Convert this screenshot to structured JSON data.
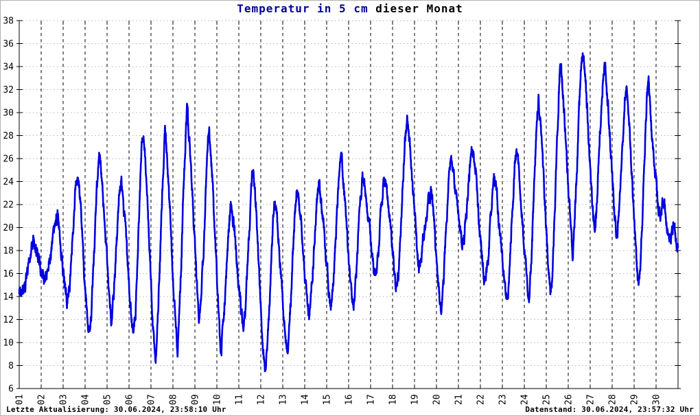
{
  "page": {
    "border_color": "#b0b0b0",
    "background": "#ffffff"
  },
  "title": {
    "primary": "Temperatur in 5 cm",
    "secondary": " dieser Monat",
    "primary_color": "#000099",
    "secondary_color": "#000000"
  },
  "footer": {
    "left": "Letzte Aktualisierung: 30.06.2024, 23:58:10 Uhr",
    "right": "Datenstand: 30.06.2024, 23:57:32 Uhr"
  },
  "chart_data": {
    "type": "line",
    "title": "Temperatur in 5 cm dieser Monat",
    "xlabel": "",
    "ylabel": "",
    "unit": "degrees Celsius",
    "ylim": [
      6,
      38
    ],
    "y_tick_step": 2,
    "x_tick_labels": [
      "01",
      "02",
      "03",
      "04",
      "05",
      "06",
      "07",
      "08",
      "09",
      "10",
      "11",
      "12",
      "13",
      "14",
      "15",
      "16",
      "17",
      "18",
      "19",
      "20",
      "21",
      "22",
      "23",
      "24",
      "25",
      "26",
      "27",
      "28",
      "29",
      "30"
    ],
    "grid": {
      "h_style": "dotted",
      "h_color": "#b3b3b3",
      "v_style": "dashed",
      "v_color": "#000000"
    },
    "series_color": "#0000dd",
    "legend": "none",
    "days": [
      {
        "day": "01",
        "min": 14.3,
        "max": 18.9
      },
      {
        "day": "02",
        "min": 15.4,
        "max": 21.0
      },
      {
        "day": "03",
        "min": 13.4,
        "max": 24.7
      },
      {
        "day": "04",
        "min": 10.1,
        "max": 26.3
      },
      {
        "day": "05",
        "min": 12.3,
        "max": 24.3
      },
      {
        "day": "06",
        "min": 10.5,
        "max": 28.4
      },
      {
        "day": "07",
        "min": 8.6,
        "max": 28.0
      },
      {
        "day": "08",
        "min": 9.7,
        "max": 30.1
      },
      {
        "day": "09",
        "min": 12.0,
        "max": 28.3
      },
      {
        "day": "10",
        "min": 9.4,
        "max": 22.2
      },
      {
        "day": "11",
        "min": 11.1,
        "max": 25.1
      },
      {
        "day": "12",
        "min": 7.1,
        "max": 22.7
      },
      {
        "day": "13",
        "min": 8.9,
        "max": 23.4
      },
      {
        "day": "14",
        "min": 12.7,
        "max": 23.7
      },
      {
        "day": "15",
        "min": 13.2,
        "max": 26.1
      },
      {
        "day": "16",
        "min": 13.0,
        "max": 24.5
      },
      {
        "day": "17",
        "min": 15.9,
        "max": 24.3
      },
      {
        "day": "18",
        "min": 14.6,
        "max": 29.4
      },
      {
        "day": "19",
        "min": 16.9,
        "max": 23.0
      },
      {
        "day": "20",
        "min": 13.0,
        "max": 26.0
      },
      {
        "day": "21",
        "min": 18.4,
        "max": 26.9
      },
      {
        "day": "22",
        "min": 15.1,
        "max": 23.9
      },
      {
        "day": "23",
        "min": 14.1,
        "max": 26.5
      },
      {
        "day": "24",
        "min": 13.8,
        "max": 31.1
      },
      {
        "day": "25",
        "min": 14.2,
        "max": 34.2
      },
      {
        "day": "26",
        "min": 17.9,
        "max": 35.5
      },
      {
        "day": "27",
        "min": 20.1,
        "max": 34.4
      },
      {
        "day": "28",
        "min": 19.5,
        "max": 32.0
      },
      {
        "day": "29",
        "min": 15.0,
        "max": 32.8
      },
      {
        "day": "30",
        "min": 20.8,
        "max": 22.7
      }
    ],
    "start_value": 14.6,
    "end_value": 17.8,
    "min_hour_default": 5.0,
    "peak_hour_default": 15.5,
    "peak_hour_overrides": {
      "2": 17.5,
      "19": 18.2
    },
    "day29_evening_plateau": 25.5,
    "day30_profile": [
      [
        4.5,
        20.8
      ],
      [
        8,
        22.7
      ],
      [
        12,
        20.0
      ],
      [
        16,
        19.3
      ],
      [
        20,
        20.3
      ],
      [
        23.95,
        17.8
      ]
    ]
  }
}
